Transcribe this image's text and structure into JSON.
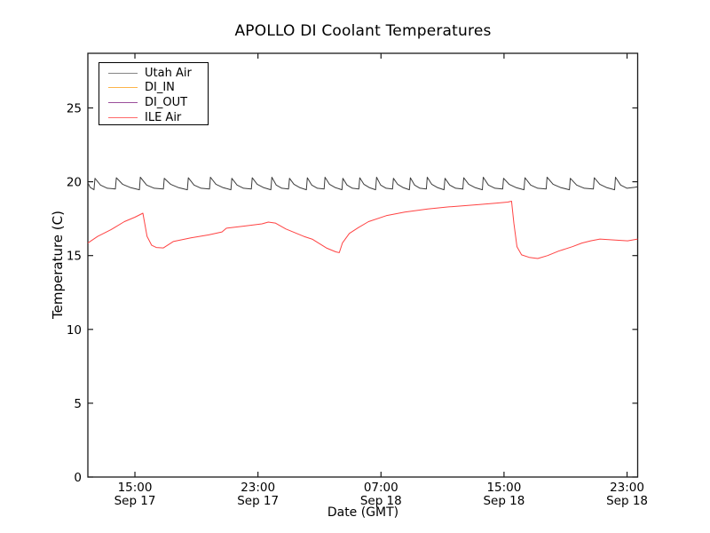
{
  "title": "APOLLO DI Coolant Temperatures",
  "axes": {
    "xlabel": "Date (GMT)",
    "ylabel": "Temperature (C)",
    "x_domain_hours": [
      0,
      35.75
    ],
    "ylim": [
      0,
      28.7
    ],
    "y_ticks": [
      0,
      5,
      10,
      15,
      20,
      25
    ],
    "x_ticks": [
      {
        "hour": 3.06,
        "line1": "15:00",
        "line2": "Sep 17"
      },
      {
        "hour": 11.06,
        "line1": "23:00",
        "line2": "Sep 17"
      },
      {
        "hour": 19.06,
        "line1": "07:00",
        "line2": "Sep 18"
      },
      {
        "hour": 27.06,
        "line1": "15:00",
        "line2": "Sep 18"
      },
      {
        "hour": 35.06,
        "line1": "23:00",
        "line2": "Sep 18"
      }
    ],
    "grid": false,
    "tick_direction": "in"
  },
  "legend": {
    "position": "upper-left",
    "border_color": "#000000",
    "background": "#ffffff"
  },
  "chart_data": {
    "type": "line",
    "title": "APOLLO DI Coolant Temperatures",
    "xlabel": "Date (GMT)",
    "ylabel": "Temperature (C)",
    "x_unit": "hours since Sep 17 ~12:00 GMT",
    "ylim": [
      0,
      28.7
    ],
    "legend_position": "upper-left",
    "series": [
      {
        "name": "Utah Air",
        "color": "#3c3c3c",
        "legend_color": "#858585",
        "style": "sawtooth",
        "start": [
          0,
          19.92
        ],
        "trough": 19.48,
        "peak": 20.27,
        "end_hour": 35.75,
        "end_value": 19.66,
        "teeth_hours": [
          0.4,
          1.79,
          3.35,
          4.91,
          6.47,
          7.91,
          9.3,
          10.63,
          11.9,
          13.05,
          14.21,
          15.36,
          16.52,
          17.62,
          18.71,
          19.81,
          20.91,
          22.01,
          23.16,
          24.38,
          25.65,
          26.97,
          28.36,
          29.8,
          31.31,
          32.87,
          34.25
        ]
      },
      {
        "name": "DI_IN",
        "color": "#ffa500",
        "legend_color": "#fdb44a",
        "style": "points",
        "points": []
      },
      {
        "name": "DI_OUT",
        "color": "#800080",
        "legend_color": "#9b4f9b",
        "style": "points",
        "points": []
      },
      {
        "name": "ILE Air",
        "color": "#ff4343",
        "legend_color": "#ff6a6a",
        "style": "points",
        "points": [
          [
            0,
            15.85
          ],
          [
            0.64,
            16.3
          ],
          [
            1.5,
            16.75
          ],
          [
            2.37,
            17.3
          ],
          [
            3.06,
            17.6
          ],
          [
            3.58,
            17.87
          ],
          [
            3.85,
            16.3
          ],
          [
            4.15,
            15.7
          ],
          [
            4.45,
            15.55
          ],
          [
            4.91,
            15.52
          ],
          [
            5.55,
            15.95
          ],
          [
            6.7,
            16.2
          ],
          [
            7.86,
            16.4
          ],
          [
            8.72,
            16.6
          ],
          [
            9.01,
            16.85
          ],
          [
            10.17,
            17.0
          ],
          [
            11.32,
            17.15
          ],
          [
            11.73,
            17.27
          ],
          [
            12.19,
            17.2
          ],
          [
            12.88,
            16.8
          ],
          [
            14.04,
            16.3
          ],
          [
            14.61,
            16.1
          ],
          [
            15.54,
            15.5
          ],
          [
            16.12,
            15.25
          ],
          [
            16.35,
            15.2
          ],
          [
            16.55,
            15.85
          ],
          [
            17.0,
            16.5
          ],
          [
            17.6,
            16.9
          ],
          [
            18.25,
            17.3
          ],
          [
            19.4,
            17.7
          ],
          [
            20.6,
            17.95
          ],
          [
            22.1,
            18.15
          ],
          [
            23.45,
            18.3
          ],
          [
            25.36,
            18.45
          ],
          [
            26.5,
            18.55
          ],
          [
            27.3,
            18.62
          ],
          [
            27.55,
            18.68
          ],
          [
            27.7,
            17.2
          ],
          [
            27.9,
            15.6
          ],
          [
            28.2,
            15.05
          ],
          [
            28.7,
            14.88
          ],
          [
            29.25,
            14.8
          ],
          [
            29.9,
            15.0
          ],
          [
            30.6,
            15.3
          ],
          [
            31.5,
            15.6
          ],
          [
            32.12,
            15.85
          ],
          [
            32.7,
            16.0
          ],
          [
            33.3,
            16.12
          ],
          [
            34.3,
            16.05
          ],
          [
            35.1,
            16.0
          ],
          [
            35.75,
            16.12
          ]
        ]
      }
    ]
  }
}
